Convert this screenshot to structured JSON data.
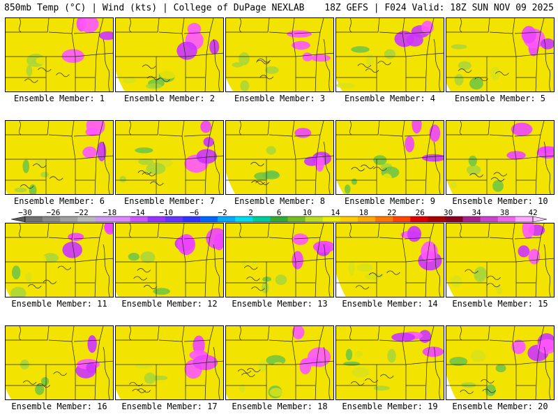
{
  "header": {
    "left": "850mb Temp (°C) | Wind (kts) | College of DuPage NEXLAB",
    "right": "18Z GEFS | F024 Valid: 18Z SUN NOV 09 2025"
  },
  "member_label_prefix": "Ensemble Member: ",
  "members": [
    {
      "id": 1,
      "label": "Ensemble Member: 1"
    },
    {
      "id": 2,
      "label": "Ensemble Member: 2"
    },
    {
      "id": 3,
      "label": "Ensemble Member: 3"
    },
    {
      "id": 4,
      "label": "Ensemble Member: 4"
    },
    {
      "id": 5,
      "label": "Ensemble Member: 5"
    },
    {
      "id": 6,
      "label": "Ensemble Member: 6"
    },
    {
      "id": 7,
      "label": "Ensemble Member: 7"
    },
    {
      "id": 8,
      "label": "Ensemble Member: 8"
    },
    {
      "id": 9,
      "label": "Ensemble Member: 9"
    },
    {
      "id": 10,
      "label": "Ensemble Member: 10"
    },
    {
      "id": 11,
      "label": "Ensemble Member: 11"
    },
    {
      "id": 12,
      "label": "Ensemble Member: 12"
    },
    {
      "id": 13,
      "label": "Ensemble Member: 13"
    },
    {
      "id": 14,
      "label": "Ensemble Member: 14"
    },
    {
      "id": 15,
      "label": "Ensemble Member: 15"
    },
    {
      "id": 16,
      "label": "Ensemble Member: 16"
    },
    {
      "id": 17,
      "label": "Ensemble Member: 17"
    },
    {
      "id": 18,
      "label": "Ensemble Member: 18"
    },
    {
      "id": 19,
      "label": "Ensemble Member: 19"
    },
    {
      "id": 20,
      "label": "Ensemble Member: 20"
    }
  ],
  "colorbar": {
    "tick_labels": [
      "−30",
      "−26",
      "−22",
      "−18",
      "−14",
      "−10",
      "−6",
      "−2",
      "2",
      "6",
      "10",
      "14",
      "18",
      "22",
      "26",
      "30",
      "34",
      "38",
      "42"
    ],
    "colors": [
      "#707070",
      "#8a8a8a",
      "#a0a0a0",
      "#b8b8b8",
      "#cc99ee",
      "#dd88ff",
      "#cc55ff",
      "#9933ff",
      "#6633ff",
      "#3333ff",
      "#0066ff",
      "#00aaff",
      "#00ddee",
      "#00cc99",
      "#33aa33",
      "#77bb22",
      "#bbdd22",
      "#eeee00",
      "#ffcc00",
      "#ffaa00",
      "#ff7700",
      "#ff4400",
      "#dd0000",
      "#aa0000",
      "#880022",
      "#aa2288",
      "#cc44cc",
      "#ee66ee",
      "#ffaaff"
    ]
  },
  "field_colors": [
    "#f2e400",
    "#d8e21a",
    "#a8d63a",
    "#6cc448",
    "#2ab872",
    "#00c6b4",
    "#00b8e8",
    "#1c7eff",
    "#2a3cff",
    "#6622ff",
    "#9a22ff",
    "#cc33ff",
    "#ee44ff",
    "#ff55ff"
  ]
}
